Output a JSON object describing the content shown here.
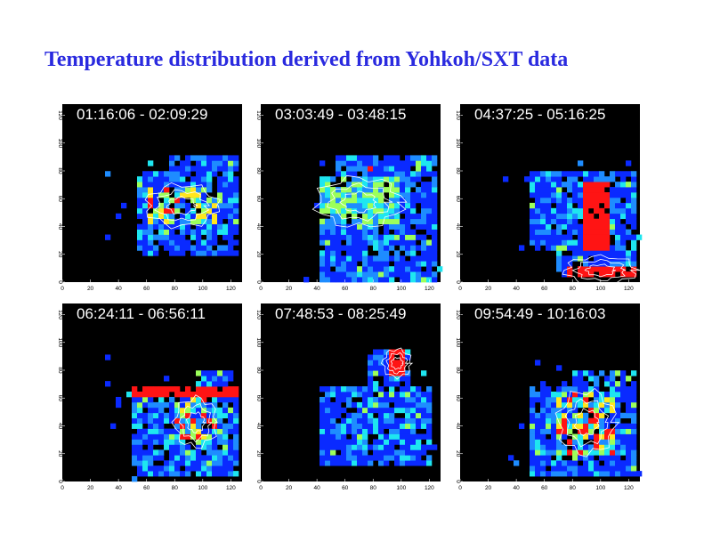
{
  "title": "Temperature distribution derived from Yohkoh/SXT data",
  "colors": {
    "background": "#000000",
    "low": "#0a2aff",
    "mid_low": "#1e8cff",
    "mid": "#1ee6f0",
    "mid_high": "#9cff5a",
    "high": "#ffe61e",
    "max": "#ff1414",
    "contour": "#ffffff",
    "title": "#2a2adf"
  },
  "chart_data": [
    {
      "type": "heatmap",
      "time_label": "01:16:06 - 02:09:29",
      "xlim": [
        0,
        128
      ],
      "ylim": [
        0,
        128
      ],
      "xticks": [
        "0",
        "20",
        "40",
        "60",
        "80",
        "100",
        "120"
      ],
      "yticks": [
        "0",
        "20",
        "40",
        "60",
        "80",
        "100",
        "120"
      ],
      "hot_regions": [
        {
          "x": [
            50,
            54
          ],
          "y": [
            72,
            78
          ],
          "level": "max"
        },
        {
          "x": [
            60,
            110
          ],
          "y": [
            40,
            70
          ],
          "level": "mixed"
        }
      ]
    },
    {
      "type": "heatmap",
      "time_label": "03:03:49 - 03:48:15",
      "xlim": [
        0,
        128
      ],
      "ylim": [
        0,
        128
      ],
      "xticks": [
        "0",
        "20",
        "40",
        "60",
        "80",
        "100",
        "120"
      ],
      "yticks": [
        "0",
        "20",
        "40",
        "60",
        "80",
        "100",
        "120"
      ],
      "hot_regions": [
        {
          "x": [
            75,
            80
          ],
          "y": [
            78,
            82
          ],
          "level": "max"
        },
        {
          "x": [
            40,
            100
          ],
          "y": [
            40,
            75
          ],
          "level": "mid"
        }
      ]
    },
    {
      "type": "heatmap",
      "time_label": "04:37:25 - 05:16:25",
      "xlim": [
        0,
        128
      ],
      "ylim": [
        0,
        128
      ],
      "xticks": [
        "0",
        "20",
        "40",
        "60",
        "80",
        "100",
        "120"
      ],
      "yticks": [
        "0",
        "20",
        "40",
        "60",
        "80",
        "100",
        "120"
      ],
      "hot_regions": [
        {
          "x": [
            88,
            108
          ],
          "y": [
            22,
            72
          ],
          "level": "max"
        },
        {
          "x": [
            75,
            125
          ],
          "y": [
            5,
            12
          ],
          "level": "max"
        }
      ]
    },
    {
      "type": "heatmap",
      "time_label": "06:24:11 - 06:56:11",
      "xlim": [
        0,
        128
      ],
      "ylim": [
        0,
        128
      ],
      "xticks": [
        "0",
        "20",
        "40",
        "60",
        "80",
        "100",
        "120"
      ],
      "yticks": [
        "0",
        "20",
        "40",
        "60",
        "80",
        "100",
        "120"
      ],
      "hot_regions": [
        {
          "x": [
            48,
            125
          ],
          "y": [
            62,
            68
          ],
          "level": "max"
        },
        {
          "x": [
            80,
            110
          ],
          "y": [
            25,
            60
          ],
          "level": "mixed"
        }
      ]
    },
    {
      "type": "heatmap",
      "time_label": "07:48:53 - 08:25:49",
      "xlim": [
        0,
        128
      ],
      "ylim": [
        0,
        128
      ],
      "xticks": [
        "0",
        "20",
        "40",
        "60",
        "80",
        "100",
        "120"
      ],
      "yticks": [
        "0",
        "20",
        "40",
        "60",
        "80",
        "100",
        "120"
      ],
      "hot_regions": [
        {
          "x": [
            90,
            104
          ],
          "y": [
            75,
            95
          ],
          "level": "max"
        }
      ]
    },
    {
      "type": "heatmap",
      "time_label": "09:54:49 - 10:16:03",
      "xlim": [
        0,
        128
      ],
      "ylim": [
        0,
        128
      ],
      "xticks": [
        "0",
        "20",
        "40",
        "60",
        "80",
        "100",
        "120"
      ],
      "yticks": [
        "0",
        "20",
        "40",
        "60",
        "80",
        "100",
        "120"
      ],
      "hot_regions": [
        {
          "x": [
            70,
            110
          ],
          "y": [
            20,
            65
          ],
          "level": "mixed"
        }
      ]
    }
  ]
}
